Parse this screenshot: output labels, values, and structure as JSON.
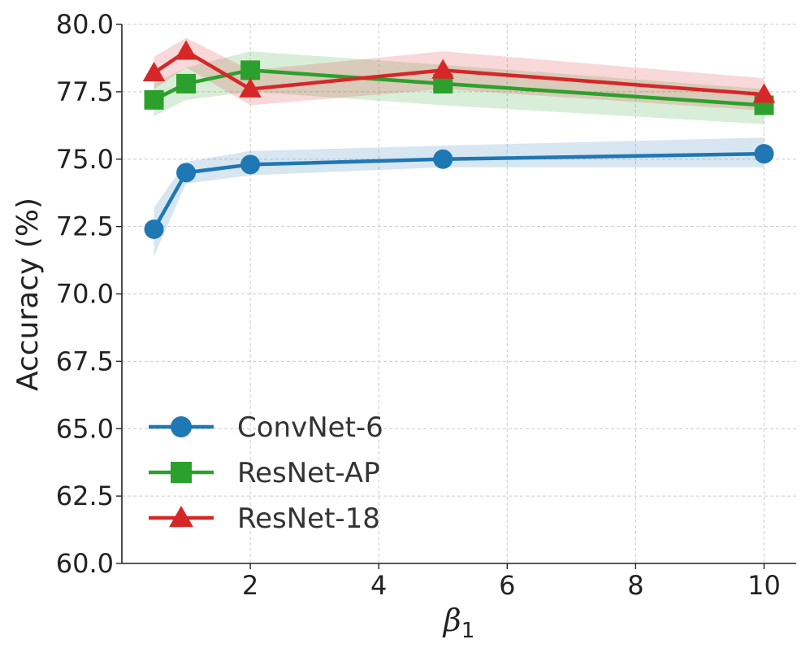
{
  "chart_data": {
    "type": "line",
    "title": "",
    "xlabel": "β",
    "xlabel_subscript": "1",
    "ylabel": "Accuracy (%)",
    "xlim": [
      0,
      10.5
    ],
    "ylim": [
      60,
      80
    ],
    "xticks": [
      2,
      4,
      6,
      8,
      10
    ],
    "xtick_labels": [
      "2",
      "4",
      "6",
      "8",
      "10"
    ],
    "yticks": [
      60,
      62.5,
      65,
      67.5,
      70,
      72.5,
      75,
      77.5,
      80
    ],
    "ytick_labels": [
      "60.0",
      "62.5",
      "65.0",
      "67.5",
      "70.0",
      "72.5",
      "75.0",
      "77.5",
      "80.0"
    ],
    "grid": true,
    "legend_position": "lower-left",
    "x": [
      0.5,
      1,
      2,
      5,
      10
    ],
    "series": [
      {
        "name": "ConvNet-6",
        "color": "#1f77b4",
        "marker": "circle",
        "values": [
          72.4,
          74.5,
          74.8,
          75.0,
          75.2
        ],
        "lower": [
          71.4,
          74.1,
          74.4,
          74.7,
          74.7
        ],
        "upper": [
          73.2,
          74.9,
          75.3,
          75.5,
          75.8
        ]
      },
      {
        "name": "ResNet-AP",
        "color": "#2ca02c",
        "marker": "square",
        "values": [
          77.2,
          77.8,
          78.3,
          77.8,
          77.0
        ],
        "lower": [
          76.6,
          77.2,
          77.5,
          77.0,
          76.3
        ],
        "upper": [
          77.8,
          78.4,
          79.0,
          78.5,
          77.6
        ]
      },
      {
        "name": "ResNet-18",
        "color": "#d62728",
        "marker": "triangle",
        "values": [
          78.2,
          79.0,
          77.6,
          78.3,
          77.4
        ],
        "lower": [
          77.6,
          78.4,
          77.0,
          77.6,
          76.8
        ],
        "upper": [
          78.8,
          79.5,
          78.3,
          79.0,
          78.0
        ]
      }
    ]
  }
}
